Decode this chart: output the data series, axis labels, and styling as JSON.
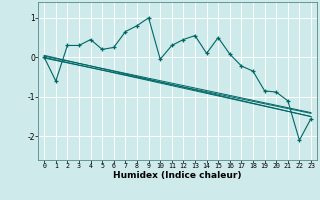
{
  "xlabel": "Humidex (Indice chaleur)",
  "bg_color": "#ceeaea",
  "grid_color": "#ffffff",
  "line_color": "#006666",
  "xlim": [
    -0.5,
    23.5
  ],
  "ylim": [
    -2.6,
    1.4
  ],
  "yticks": [
    -2,
    -1,
    0,
    1
  ],
  "xticks": [
    0,
    1,
    2,
    3,
    4,
    5,
    6,
    7,
    8,
    9,
    10,
    11,
    12,
    13,
    14,
    15,
    16,
    17,
    18,
    19,
    20,
    21,
    22,
    23
  ],
  "data_x": [
    0,
    1,
    2,
    3,
    4,
    5,
    6,
    7,
    8,
    9,
    10,
    11,
    12,
    13,
    14,
    15,
    16,
    17,
    18,
    19,
    20,
    21,
    22,
    23
  ],
  "data_y": [
    0.0,
    -0.6,
    0.3,
    0.3,
    0.45,
    0.2,
    0.25,
    0.65,
    0.8,
    1.0,
    -0.05,
    0.3,
    0.45,
    0.55,
    0.1,
    0.5,
    0.08,
    -0.22,
    -0.35,
    -0.85,
    -0.88,
    -1.1,
    -2.1,
    -1.55
  ],
  "regression_lines": [
    {
      "x0": 0,
      "y0": 0.05,
      "x1": 23,
      "y1": -1.5
    },
    {
      "x0": 0,
      "y0": 0.03,
      "x1": 23,
      "y1": -1.4
    },
    {
      "x0": 0,
      "y0": 0.0,
      "x1": 23,
      "y1": -1.5
    },
    {
      "x0": 0,
      "y0": -0.02,
      "x1": 23,
      "y1": -1.42
    }
  ]
}
